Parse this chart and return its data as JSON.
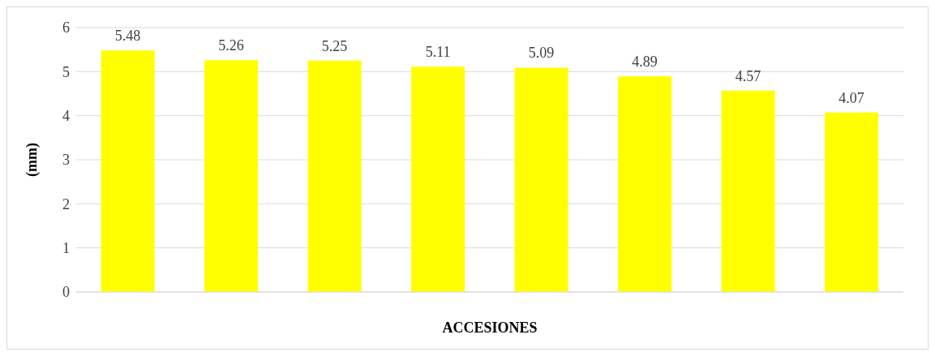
{
  "chart_data": {
    "type": "bar",
    "xlabel": "ACCESIONES",
    "ylabel": "(mm)",
    "categories": [
      null,
      null,
      null,
      null,
      null,
      null,
      null,
      null
    ],
    "values": [
      5.48,
      5.26,
      5.25,
      5.11,
      5.09,
      4.89,
      4.57,
      4.07
    ],
    "color": "#ffff00",
    "ylim": [
      0,
      6
    ],
    "yticks": [
      0,
      1,
      2,
      3,
      4,
      5,
      6
    ],
    "grid": "y",
    "data_labels": true
  }
}
